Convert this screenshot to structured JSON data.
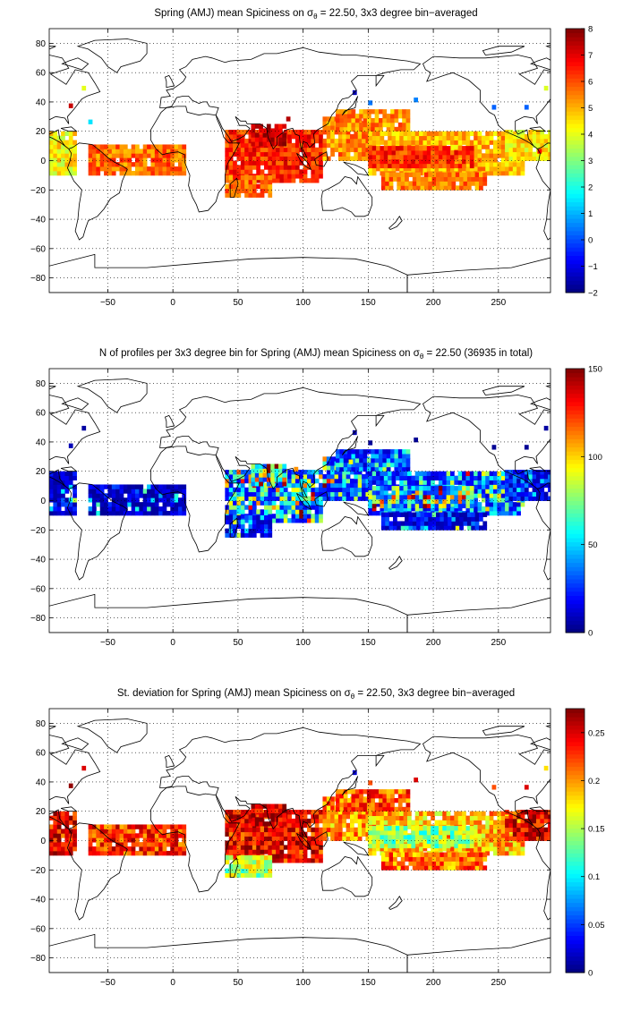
{
  "chart_data": [
    {
      "type": "heatmap",
      "title": {
        "before": "Spring (AMJ) mean Spiciness on ",
        "sigma": "σ",
        "theta": "θ",
        "after": " = 22.50, 3x3 degree bin−averaged"
      },
      "xlim": [
        -95,
        290
      ],
      "ylim": [
        -90,
        90
      ],
      "xticks": [
        -50,
        0,
        50,
        100,
        150,
        200,
        250
      ],
      "yticks": [
        -80,
        -60,
        -40,
        -20,
        0,
        20,
        40,
        60,
        80
      ],
      "grid": true,
      "colormap": "jet",
      "colorbar": {
        "range": [
          -2,
          8
        ],
        "ticks": [
          -2,
          -1,
          0,
          1,
          2,
          3,
          4,
          5,
          6,
          7,
          8
        ],
        "tick_labels": [
          "−2",
          "−1",
          "0",
          "1",
          "2",
          "3",
          "4",
          "5",
          "6",
          "7",
          "8"
        ]
      },
      "regions": [
        {
          "lon": [
            -95,
            -75
          ],
          "lat": [
            -10,
            20
          ],
          "value": 4.3
        },
        {
          "lon": [
            -65,
            10
          ],
          "lat": [
            -10,
            10
          ],
          "value": 5.7
        },
        {
          "lon": [
            40,
            115
          ],
          "lat": [
            -15,
            20
          ],
          "value": 6.4
        },
        {
          "lon": [
            40,
            75
          ],
          "lat": [
            -25,
            -10
          ],
          "value": 5.8
        },
        {
          "lon": [
            60,
            85
          ],
          "lat": [
            10,
            25
          ],
          "value": 7.2
        },
        {
          "lon": [
            115,
            150
          ],
          "lat": [
            0,
            30
          ],
          "value": 5.4
        },
        {
          "lon": [
            125,
            180
          ],
          "lat": [
            20,
            35
          ],
          "value": 5.4
        },
        {
          "lon": [
            150,
            270
          ],
          "lat": [
            -10,
            20
          ],
          "value": 5.0
        },
        {
          "lon": [
            160,
            240
          ],
          "lat": [
            -20,
            -10
          ],
          "value": 5.6
        },
        {
          "lon": [
            150,
            230
          ],
          "lat": [
            -5,
            10
          ],
          "value": 6.3
        },
        {
          "lon": [
            255,
            290
          ],
          "lat": [
            0,
            20
          ],
          "value": 4.4
        }
      ],
      "points": [
        {
          "lon": -80,
          "lat": 36,
          "value": 7.3
        },
        {
          "lon": -70,
          "lat": 48,
          "value": 4.0
        },
        {
          "lon": -65,
          "lat": 25,
          "value": 1.5
        },
        {
          "lon": 87,
          "lat": 27,
          "value": 7.5
        },
        {
          "lon": 138,
          "lat": 45,
          "value": -1.5
        },
        {
          "lon": 150,
          "lat": 38,
          "value": 0.4
        },
        {
          "lon": 185,
          "lat": 40,
          "value": 0.5
        },
        {
          "lon": 245,
          "lat": 35,
          "value": 0.2
        },
        {
          "lon": 270,
          "lat": 35,
          "value": 0.2
        },
        {
          "lon": 285,
          "lat": 48,
          "value": 3.9
        },
        {
          "lon": 280,
          "lat": 5,
          "value": 6.8
        }
      ]
    },
    {
      "type": "heatmap",
      "title": {
        "before": "N of profiles per 3x3 degree bin for Spring (AMJ) mean Spiciness on ",
        "sigma": "σ",
        "theta": "θ",
        "after": " = 22.50 (36935 in total)"
      },
      "xlim": [
        -95,
        290
      ],
      "ylim": [
        -90,
        90
      ],
      "xticks": [
        -50,
        0,
        50,
        100,
        150,
        200,
        250
      ],
      "yticks": [
        -80,
        -60,
        -40,
        -20,
        0,
        20,
        40,
        60,
        80
      ],
      "grid": true,
      "colormap": "jet",
      "colorbar": {
        "range": [
          0,
          150
        ],
        "ticks": [
          0,
          50,
          100,
          150
        ],
        "tick_labels": [
          "0",
          "50",
          "100",
          "150"
        ]
      },
      "regions": [
        {
          "lon": [
            -95,
            -75
          ],
          "lat": [
            -10,
            20
          ],
          "value": 12
        },
        {
          "lon": [
            -65,
            10
          ],
          "lat": [
            -10,
            10
          ],
          "value": 10
        },
        {
          "lon": [
            40,
            115
          ],
          "lat": [
            -15,
            20
          ],
          "value": 45
        },
        {
          "lon": [
            40,
            75
          ],
          "lat": [
            -25,
            -10
          ],
          "value": 20
        },
        {
          "lon": [
            60,
            85
          ],
          "lat": [
            10,
            25
          ],
          "value": 70
        },
        {
          "lon": [
            115,
            150
          ],
          "lat": [
            0,
            30
          ],
          "value": 40
        },
        {
          "lon": [
            125,
            180
          ],
          "lat": [
            20,
            35
          ],
          "value": 30
        },
        {
          "lon": [
            150,
            270
          ],
          "lat": [
            -10,
            20
          ],
          "value": 35
        },
        {
          "lon": [
            160,
            240
          ],
          "lat": [
            -20,
            -10
          ],
          "value": 15
        },
        {
          "lon": [
            150,
            230
          ],
          "lat": [
            -5,
            10
          ],
          "value": 60
        },
        {
          "lon": [
            255,
            290
          ],
          "lat": [
            0,
            20
          ],
          "value": 20
        }
      ],
      "points": [
        {
          "lon": -80,
          "lat": 36,
          "value": 8
        },
        {
          "lon": -70,
          "lat": 48,
          "value": 5
        },
        {
          "lon": 138,
          "lat": 45,
          "value": 6
        },
        {
          "lon": 150,
          "lat": 38,
          "value": 4
        },
        {
          "lon": 185,
          "lat": 40,
          "value": 3
        },
        {
          "lon": 245,
          "lat": 35,
          "value": 3
        },
        {
          "lon": 270,
          "lat": 35,
          "value": 3
        },
        {
          "lon": 285,
          "lat": 48,
          "value": 5
        },
        {
          "lon": 93,
          "lat": 20,
          "value": 110
        },
        {
          "lon": 135,
          "lat": 25,
          "value": 95
        }
      ]
    },
    {
      "type": "heatmap",
      "title": {
        "before": "St. deviation for Spring (AMJ) mean Spiciness on ",
        "sigma": "σ",
        "theta": "θ",
        "after": " = 22.50, 3x3 degree bin−averaged"
      },
      "xlim": [
        -95,
        290
      ],
      "ylim": [
        -90,
        90
      ],
      "xticks": [
        -50,
        0,
        50,
        100,
        150,
        200,
        250
      ],
      "yticks": [
        -80,
        -60,
        -40,
        -20,
        0,
        20,
        40,
        60,
        80
      ],
      "grid": true,
      "colormap": "jet",
      "colorbar": {
        "range": [
          0,
          0.275
        ],
        "ticks": [
          0,
          0.05,
          0.1,
          0.15,
          0.2,
          0.25
        ],
        "tick_labels": [
          "0",
          "0.05",
          "0.1",
          "0.15",
          "0.2",
          "0.25"
        ]
      },
      "regions": [
        {
          "lon": [
            -95,
            -75
          ],
          "lat": [
            -10,
            20
          ],
          "value": 0.24
        },
        {
          "lon": [
            -65,
            10
          ],
          "lat": [
            -10,
            10
          ],
          "value": 0.23
        },
        {
          "lon": [
            40,
            115
          ],
          "lat": [
            -15,
            20
          ],
          "value": 0.24
        },
        {
          "lon": [
            40,
            75
          ],
          "lat": [
            -25,
            -10
          ],
          "value": 0.15
        },
        {
          "lon": [
            60,
            85
          ],
          "lat": [
            10,
            25
          ],
          "value": 0.26
        },
        {
          "lon": [
            115,
            150
          ],
          "lat": [
            0,
            30
          ],
          "value": 0.2
        },
        {
          "lon": [
            125,
            180
          ],
          "lat": [
            20,
            35
          ],
          "value": 0.22
        },
        {
          "lon": [
            150,
            270
          ],
          "lat": [
            -10,
            20
          ],
          "value": 0.19
        },
        {
          "lon": [
            160,
            240
          ],
          "lat": [
            -20,
            -10
          ],
          "value": 0.21
        },
        {
          "lon": [
            150,
            230
          ],
          "lat": [
            -5,
            10
          ],
          "value": 0.14
        },
        {
          "lon": [
            255,
            290
          ],
          "lat": [
            0,
            20
          ],
          "value": 0.25
        }
      ],
      "points": [
        {
          "lon": -80,
          "lat": 36,
          "value": 0.27
        },
        {
          "lon": -70,
          "lat": 48,
          "value": 0.25
        },
        {
          "lon": 138,
          "lat": 45,
          "value": 0.02
        },
        {
          "lon": 150,
          "lat": 38,
          "value": 0.22
        },
        {
          "lon": 185,
          "lat": 40,
          "value": 0.25
        },
        {
          "lon": 245,
          "lat": 35,
          "value": 0.22
        },
        {
          "lon": 270,
          "lat": 35,
          "value": 0.25
        },
        {
          "lon": 285,
          "lat": 48,
          "value": 0.18
        }
      ]
    }
  ]
}
